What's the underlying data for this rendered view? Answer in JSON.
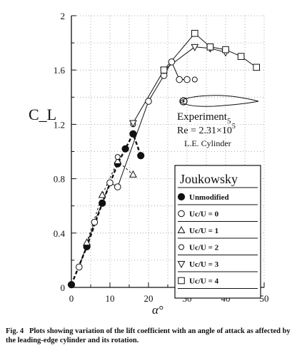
{
  "chart_data": {
    "type": "scatter",
    "xlabel": "α°",
    "ylabel": "C_L",
    "xlim": [
      0,
      50
    ],
    "ylim": [
      0,
      2
    ],
    "x_ticks": [
      "0",
      "10",
      "20",
      "30",
      "40",
      "50"
    ],
    "y_ticks": [
      "0",
      "0.4",
      "0.8",
      "1.2",
      "1.6",
      "2"
    ],
    "grid": "dotted",
    "annotation": {
      "line1": "Experiment",
      "line1_sup": "5",
      "line2": "Re = 2.31×10",
      "line2_sup": "5",
      "line3": "L.E. Cylinder"
    },
    "legend": {
      "title": "Joukowsky",
      "placement": "lower-right"
    },
    "series": [
      {
        "name": "Unmodified",
        "marker": "filled-circle",
        "points": [
          [
            0,
            0.02
          ],
          [
            4,
            0.3
          ],
          [
            8,
            0.62
          ],
          [
            12,
            0.91
          ],
          [
            14,
            1.02
          ],
          [
            16,
            1.13
          ],
          [
            18,
            0.97
          ]
        ]
      },
      {
        "name": "Uc/U = 0",
        "marker": "open-circle",
        "points": [
          [
            2,
            0.15
          ],
          [
            6,
            0.48
          ],
          [
            10,
            0.77
          ],
          [
            12,
            0.74
          ],
          [
            20,
            1.37
          ],
          [
            24,
            1.56
          ],
          [
            26,
            1.66
          ],
          [
            28,
            1.53
          ],
          [
            30,
            1.53
          ]
        ]
      },
      {
        "name": "Uc/U = 1",
        "marker": "triangle-up",
        "points": [
          [
            4,
            0.33
          ],
          [
            8,
            0.68
          ],
          [
            12,
            0.93
          ],
          [
            16,
            0.83
          ]
        ]
      },
      {
        "name": "Uc/U = 2",
        "marker": "open-circle-small",
        "points": [
          [
            12,
            0.96
          ],
          [
            16,
            1.2
          ],
          [
            32,
            1.53
          ]
        ]
      },
      {
        "name": "Uc/U = 3",
        "marker": "triangle-down",
        "points": [
          [
            16,
            1.21
          ],
          [
            24,
            1.6
          ],
          [
            32,
            1.77
          ],
          [
            36,
            1.76
          ],
          [
            40,
            1.73
          ]
        ]
      },
      {
        "name": "Uc/U = 4",
        "marker": "square",
        "points": [
          [
            24,
            1.6
          ],
          [
            32,
            1.87
          ],
          [
            36,
            1.77
          ],
          [
            40,
            1.75
          ],
          [
            44,
            1.7
          ],
          [
            48,
            1.62
          ]
        ]
      }
    ]
  },
  "caption": {
    "label": "Fig. 4",
    "text": "Plots showing variation of the lift coefficient with an angle of attack as affected by the leading-edge cylinder and its rotation."
  }
}
